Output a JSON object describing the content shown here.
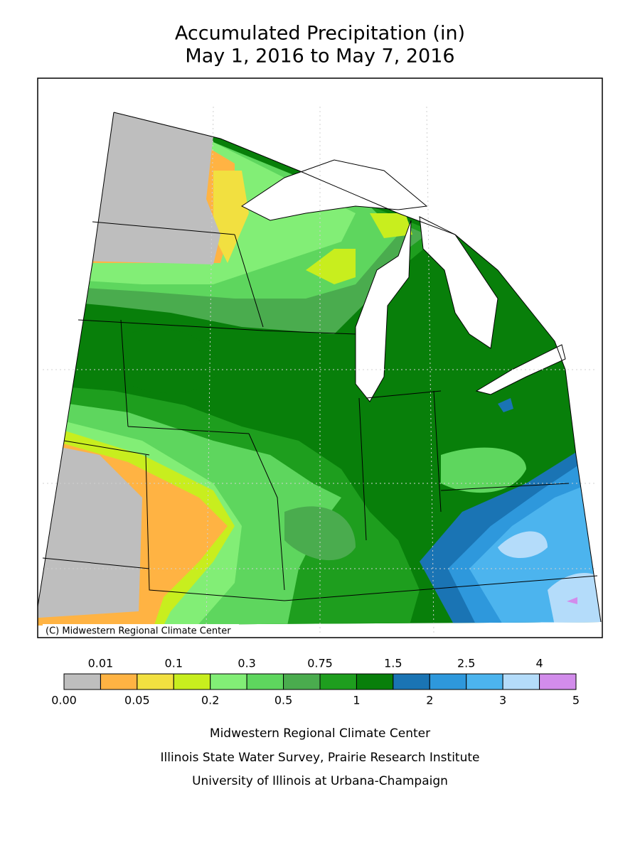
{
  "header": {
    "title": "Accumulated Precipitation (in)",
    "subtitle": "May 1, 2016 to May 7, 2016"
  },
  "map": {
    "copyright": "(C) Midwestern Regional Climate Center"
  },
  "legend": {
    "breaks": [
      {
        "value": 0,
        "label": "0.00"
      },
      0.01,
      0.05,
      0.1,
      0.2,
      0.3,
      0.5,
      0.75,
      1,
      1.5,
      2,
      2.5,
      3,
      4,
      5
    ],
    "colors": [
      "#bebebe",
      "#ffb343",
      "#f2e040",
      "#c8ee1e",
      "#82ee76",
      "#5ed65e",
      "#4aac4e",
      "#1e9e1e",
      "#087f0a",
      "#1a74b4",
      "#2e98dc",
      "#4cb4ee",
      "#b4dcfa",
      "#d28ceb"
    ]
  },
  "footer": {
    "lines": [
      "Midwestern Regional Climate Center",
      "Illinois State Water Survey, Prairie Research Institute",
      "University of Illinois at Urbana-Champaign"
    ]
  }
}
